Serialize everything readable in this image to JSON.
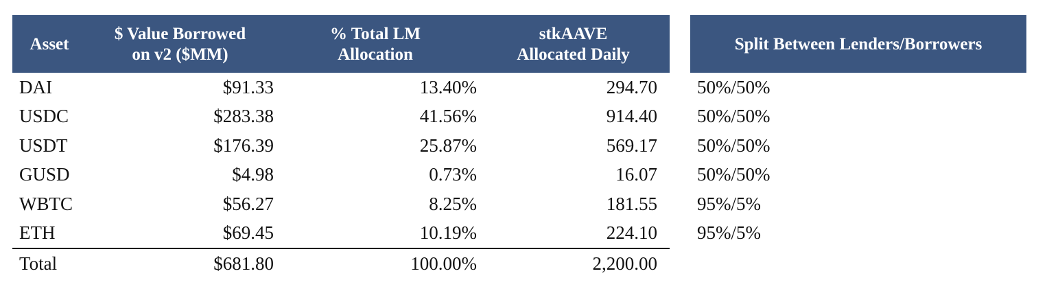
{
  "main_table": {
    "headers": [
      "Asset",
      "$ Value Borrowed on v2 ($MM)",
      "% Total LM Allocation",
      "stkAAVE Allocated Daily"
    ],
    "header_lines": {
      "asset": [
        "Asset"
      ],
      "value": [
        "$ Value Borrowed",
        "on v2 ($MM)"
      ],
      "pct": [
        "% Total LM",
        "Allocation"
      ],
      "stk": [
        "stkAAVE",
        "Allocated Daily"
      ]
    },
    "rows": [
      {
        "asset": "DAI",
        "value": "$91.33",
        "pct": "13.40%",
        "stk": "294.70"
      },
      {
        "asset": "USDC",
        "value": "$283.38",
        "pct": "41.56%",
        "stk": "914.40"
      },
      {
        "asset": "USDT",
        "value": "$176.39",
        "pct": "25.87%",
        "stk": "569.17"
      },
      {
        "asset": "GUSD",
        "value": "$4.98",
        "pct": "0.73%",
        "stk": "16.07"
      },
      {
        "asset": "WBTC",
        "value": "$56.27",
        "pct": "8.25%",
        "stk": "181.55"
      },
      {
        "asset": "ETH",
        "value": "$69.45",
        "pct": "10.19%",
        "stk": "224.10"
      }
    ],
    "total": {
      "asset": "Total",
      "value": "$681.80",
      "pct": "100.00%",
      "stk": "2,200.00"
    }
  },
  "split_table": {
    "header": "Split Between Lenders/Borrowers",
    "rows": [
      "50%/50%",
      "50%/50%",
      "50%/50%",
      "50%/50%",
      "95%/5%",
      "95%/5%"
    ]
  },
  "colors": {
    "header_background": "#3b5680",
    "header_text": "#ffffff"
  }
}
